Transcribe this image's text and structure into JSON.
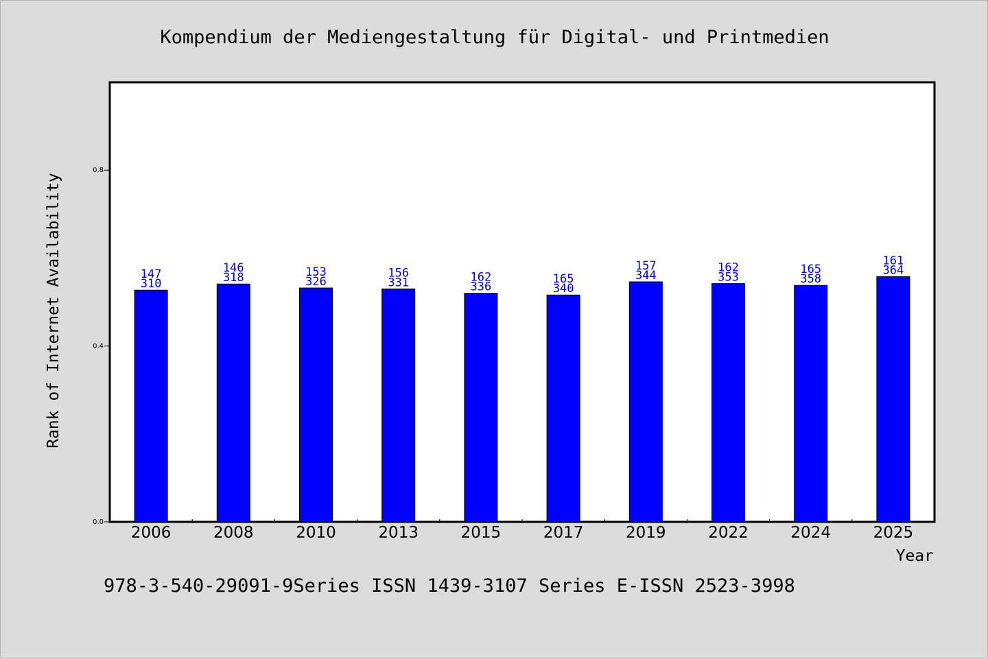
{
  "colors": {
    "background": "#dcdcdc",
    "plot_background": "#ffffff",
    "bar_fill": "#0000ff",
    "bar_stroke": "#000000",
    "label_color": "#0000cc",
    "text": "#000000"
  },
  "footer_text": "978-3-540-29091-9Series ISSN 1439-3107 Series E-ISSN 2523-3998",
  "chart_data": {
    "type": "bar",
    "title": "Kompendium der Mediengestaltung für Digital- und Printmedien",
    "xlabel": "Year",
    "ylabel": "Rank of Internet Availability",
    "ylim": [
      0,
      1.0
    ],
    "yticks": [
      "0.0",
      "0.4",
      "0.8"
    ],
    "ytick_values": [
      0.0,
      0.4,
      0.8
    ],
    "grid": false,
    "categories": [
      "2006",
      "2008",
      "2010",
      "2013",
      "2015",
      "2017",
      "2019",
      "2022",
      "2024",
      "2025"
    ],
    "values": [
      0.527,
      0.541,
      0.532,
      0.53,
      0.52,
      0.516,
      0.546,
      0.542,
      0.538,
      0.558
    ],
    "annotations_top": [
      "147",
      "146",
      "153",
      "156",
      "162",
      "165",
      "157",
      "162",
      "165",
      "161"
    ],
    "annotations_bottom": [
      "310",
      "318",
      "326",
      "331",
      "336",
      "340",
      "344",
      "353",
      "358",
      "364"
    ]
  }
}
